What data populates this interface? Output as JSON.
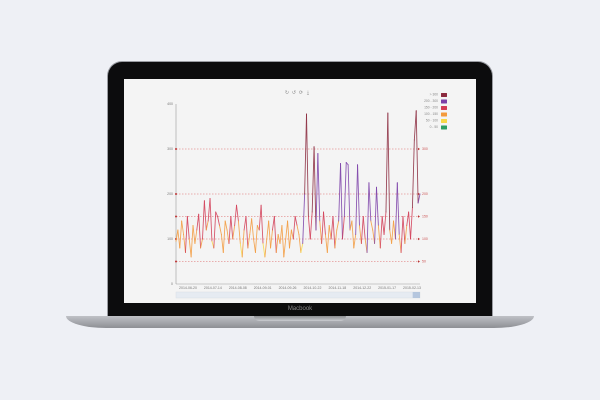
{
  "device": {
    "brand": "Macbook"
  },
  "toolbox": {
    "icons": [
      "restore-icon",
      "zoom-back-icon",
      "refresh-icon",
      "download-icon"
    ]
  },
  "chart_data": {
    "type": "line",
    "ylim": [
      0,
      400
    ],
    "yticks": [
      "0",
      "100",
      "200",
      "300",
      "400"
    ],
    "xticks": [
      "2014-06-20",
      "2014-07-14",
      "2014-08-08",
      "2014-09-01",
      "2014-09-26",
      "2014-10-22",
      "2014-11-18",
      "2014-12-22",
      "2015-01-17",
      "2015-02-13"
    ],
    "values": [
      95,
      120,
      80,
      140,
      110,
      70,
      150,
      100,
      60,
      130,
      90,
      120,
      155,
      80,
      100,
      185,
      120,
      140,
      190,
      95,
      80,
      160,
      150,
      130,
      110,
      70,
      140,
      120,
      90,
      150,
      100,
      130,
      175,
      140,
      90,
      60,
      120,
      150,
      80,
      110,
      145,
      100,
      70,
      130,
      120,
      175,
      90,
      60,
      100,
      140,
      80,
      120,
      150,
      70,
      110,
      90,
      130,
      60,
      100,
      140,
      80,
      120,
      100,
      150,
      130,
      110,
      70,
      90,
      200,
      378,
      150,
      100,
      160,
      305,
      120,
      290,
      140,
      90,
      160,
      110,
      70,
      130,
      100,
      150,
      80,
      120,
      140,
      268,
      100,
      150,
      270,
      265,
      120,
      140,
      80,
      110,
      265,
      130,
      90,
      150,
      100,
      70,
      225,
      140,
      120,
      90,
      215,
      130,
      80,
      150,
      110,
      160,
      380,
      120,
      90,
      140,
      100,
      225,
      110,
      70,
      150,
      90,
      130,
      160,
      100,
      170,
      320,
      385,
      180,
      200
    ],
    "mark_lines": [
      {
        "value": 50,
        "label": "50"
      },
      {
        "value": 100,
        "label": "100"
      },
      {
        "value": 150,
        "label": "150"
      },
      {
        "value": 200,
        "label": "200"
      },
      {
        "value": 300,
        "label": "300"
      }
    ],
    "visual_map": [
      {
        "label": "> 300",
        "min": 300,
        "color": "#8b2a3e"
      },
      {
        "label": "200 - 300",
        "min": 200,
        "color": "#7b3fa8"
      },
      {
        "label": "150 - 200",
        "min": 150,
        "color": "#d23b55"
      },
      {
        "label": "100 - 150",
        "min": 100,
        "color": "#f39a3c"
      },
      {
        "label": "50 - 100",
        "min": 50,
        "color": "#f7d847"
      },
      {
        "label": "0 - 50",
        "min": 0,
        "color": "#2e9e62"
      }
    ],
    "legend_position": "top-right",
    "data_zoom": {
      "start": 0.97,
      "end": 1.0
    }
  }
}
